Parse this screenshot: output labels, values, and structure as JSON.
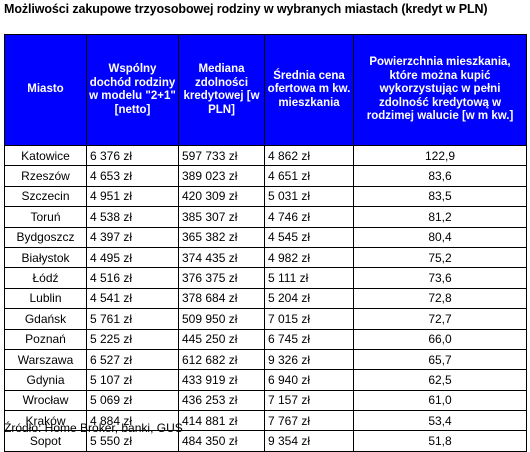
{
  "title": "Możliwości zakupowe trzyosobowej rodziny w wybranych miastach (kredyt w PLN)",
  "headers": [
    "Miasto",
    "Wspólny dochód rodziny w modelu \"2+1\" [netto]",
    "Mediana zdolności kredytowej [w PLN]",
    "Średnia cena ofertowa m kw. mieszkania",
    "Powierzchnia mieszkania, które można kupić wykorzystując w pełni zdolność kredytową w rodzimej walucie [w m kw.]"
  ],
  "rows": [
    [
      "Katowice",
      "6 376 zł",
      "597 733 zł",
      "4 862 zł",
      "122,9"
    ],
    [
      "Rzeszów",
      "4 653 zł",
      "389 023 zł",
      "4 651 zł",
      "83,6"
    ],
    [
      "Szczecin",
      "4 951 zł",
      "420 309 zł",
      "5 031 zł",
      "83,5"
    ],
    [
      "Toruń",
      "4 538 zł",
      "385 307 zł",
      "4 746 zł",
      "81,2"
    ],
    [
      "Bydgoszcz",
      "4 397 zł",
      "365 382 zł",
      "4 545 zł",
      "80,4"
    ],
    [
      "Białystok",
      "4 495 zł",
      "374 435 zł",
      "4 982 zł",
      "75,2"
    ],
    [
      "Łódź",
      "4 516 zł",
      "376 375 zł",
      "5 111 zł",
      "73,6"
    ],
    [
      "Lublin",
      "4 541 zł",
      "378 684 zł",
      "5 204 zł",
      "72,8"
    ],
    [
      "Gdańsk",
      "5 761 zł",
      "509 950 zł",
      "7 015 zł",
      "72,7"
    ],
    [
      "Poznań",
      "5 225 zł",
      "445 250 zł",
      "6 745 zł",
      "66,0"
    ],
    [
      "Warszawa",
      "6 527 zł",
      "612 682 zł",
      "9 326 zł",
      "65,7"
    ],
    [
      "Gdynia",
      "5 107 zł",
      "433 919 zł",
      "6 940 zł",
      "62,5"
    ],
    [
      "Wrocław",
      "5 069 zł",
      "436 253 zł",
      "7 157 zł",
      "61,0"
    ],
    [
      "Kraków",
      "4 884 zł",
      "414 881 zł",
      "7 767 zł",
      "53,4"
    ],
    [
      "Sopot",
      "5 550 zł",
      "484 350 zł",
      "9 354 zł",
      "51,8"
    ]
  ],
  "source": "Źródło: Home Broker, banki, GUS"
}
